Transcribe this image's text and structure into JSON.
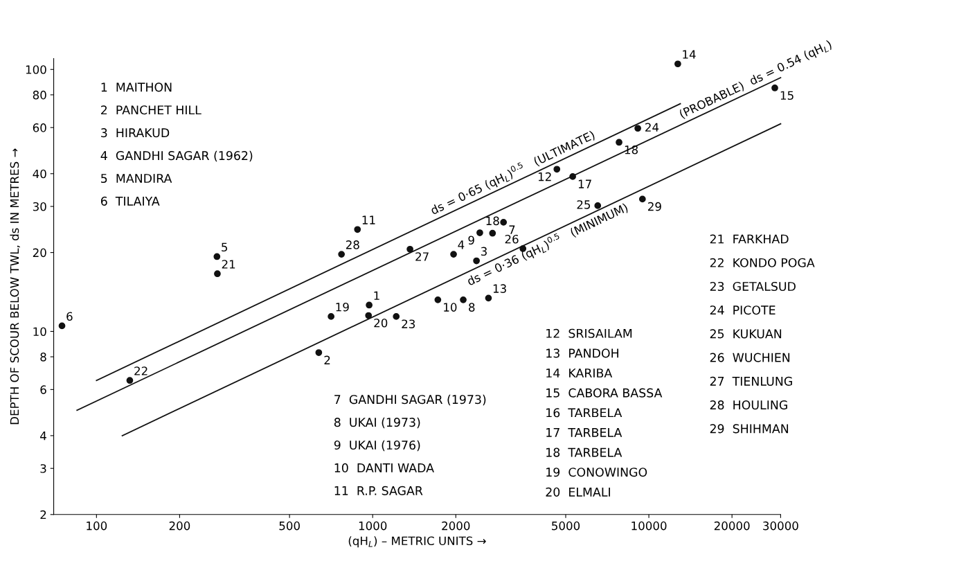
{
  "chart_data": {
    "type": "scatter",
    "xlabel": "(qH$_{L}$) – METRIC UNITS →",
    "ylabel": "DEPTH OF SCOUR BELOW TWL, ds IN METRES →",
    "log": "xy",
    "xlim": [
      70,
      30000
    ],
    "ylim": [
      2,
      110
    ],
    "xticks": [
      100,
      200,
      500,
      1000,
      2000,
      5000,
      10000,
      20000,
      30000
    ],
    "yticks": [
      2,
      3,
      4,
      6,
      8,
      10,
      20,
      30,
      40,
      60,
      80,
      100
    ],
    "grid": false,
    "legend": false,
    "series": [
      {
        "color": "#111111",
        "marker": "circle",
        "x": [
          971,
          638,
          2376,
          1963,
          273,
          75,
          2977,
          2128,
          2443,
          1722,
          881,
          4645,
          2626,
          12730,
          28580,
          5300,
          2716,
          7800,
          707,
          966,
          274,
          132,
          1217,
          9120,
          6530,
          3500,
          1365,
          771,
          9480
        ],
        "values": [
          12.6,
          8.3,
          18.6,
          19.7,
          19.3,
          10.5,
          26.1,
          13.2,
          23.8,
          13.2,
          24.5,
          41.6,
          13.4,
          105,
          85,
          39.0,
          23.7,
          52.7,
          11.4,
          11.5,
          16.6,
          6.5,
          11.4,
          59.6,
          30.2,
          20.7,
          20.6,
          19.7,
          32.0
        ]
      },
      {
        "type": "line",
        "name": "ds = 0·65 (qH$_{L}$)$^{0.5}$   (ULTIMATE)",
        "color": "#111111",
        "line_style": "solid",
        "x": [
          100,
          13000
        ],
        "values": [
          6.5,
          74
        ]
      },
      {
        "type": "line",
        "name": "(PROBABLE)  ds = 0.54 (qH$_{L}$)",
        "color": "#111111",
        "line_style": "solid",
        "x": [
          85,
          30000
        ],
        "values": [
          5.0,
          93
        ]
      },
      {
        "type": "line",
        "name": "ds = 0·36 (qH$_{L}$)$^{0.5}$   (MINIMUM)",
        "color": "#111111",
        "line_style": "solid",
        "x": [
          124,
          30000
        ],
        "values": [
          4.0,
          62
        ]
      }
    ],
    "annotations": [
      {
        "text": "1",
        "x": 971,
        "y": 12.6
      },
      {
        "text": "2",
        "x": 638,
        "y": 8.3
      },
      {
        "text": "3",
        "x": 2376,
        "y": 18.6
      },
      {
        "text": "4",
        "x": 1963,
        "y": 19.7
      },
      {
        "text": "5",
        "x": 273,
        "y": 19.3
      },
      {
        "text": "6",
        "x": 75,
        "y": 10.5
      },
      {
        "text": "7",
        "x": 2977,
        "y": 26.1
      },
      {
        "text": "8",
        "x": 2128,
        "y": 13.2
      },
      {
        "text": "9",
        "x": 2443,
        "y": 23.8
      },
      {
        "text": "10",
        "x": 1722,
        "y": 13.2
      },
      {
        "text": "11",
        "x": 881,
        "y": 24.5
      },
      {
        "text": "12",
        "x": 4645,
        "y": 41.6
      },
      {
        "text": "13",
        "x": 2626,
        "y": 13.4
      },
      {
        "text": "14",
        "x": 12730,
        "y": 105
      },
      {
        "text": "15",
        "x": 28580,
        "y": 85
      },
      {
        "text": "17",
        "x": 5300,
        "y": 39.0
      },
      {
        "text": "18",
        "x": 2716,
        "y": 23.7
      },
      {
        "text": "18",
        "x": 7800,
        "y": 52.7
      },
      {
        "text": "19",
        "x": 707,
        "y": 11.4
      },
      {
        "text": "20",
        "x": 966,
        "y": 11.5
      },
      {
        "text": "21",
        "x": 274,
        "y": 16.6
      },
      {
        "text": "22",
        "x": 132,
        "y": 6.5
      },
      {
        "text": "23",
        "x": 1217,
        "y": 11.4
      },
      {
        "text": "24",
        "x": 9120,
        "y": 59.6
      },
      {
        "text": "25",
        "x": 6530,
        "y": 30.2
      },
      {
        "text": "26",
        "x": 3500,
        "y": 20.7
      },
      {
        "text": "27",
        "x": 1365,
        "y": 20.6
      },
      {
        "text": "28",
        "x": 771,
        "y": 19.7
      },
      {
        "text": "29",
        "x": 9480,
        "y": 32.0
      },
      "1  MAITHON",
      "2  PANCHET HILL",
      "3  HIRAKUD",
      "4  GANDHI SAGAR (1962)",
      "5  MANDIRA",
      "6  TILAIYA",
      "7  GANDHI SAGAR (1973)",
      "8  UKAI (1973)",
      "9  UKAI (1976)",
      "10  DANTI WADA",
      "11  R.P. SAGAR",
      "12  SRISAILAM",
      "13  PANDOH",
      "14  KARIBA",
      "15  CABORA BASSA",
      "16  TARBELA",
      "17  TARBELA",
      "18  TARBELA",
      "19  CONOWINGO",
      "20  ELMALI",
      "21  FARKHAD",
      "22  KONDO POGA",
      "23  GETALSUD",
      "24  PICOTE",
      "25  KUKUAN",
      "26  WUCHIEN",
      "27  TIENLUNG",
      "28  HOULING",
      "29  SHIHMAN"
    ]
  }
}
